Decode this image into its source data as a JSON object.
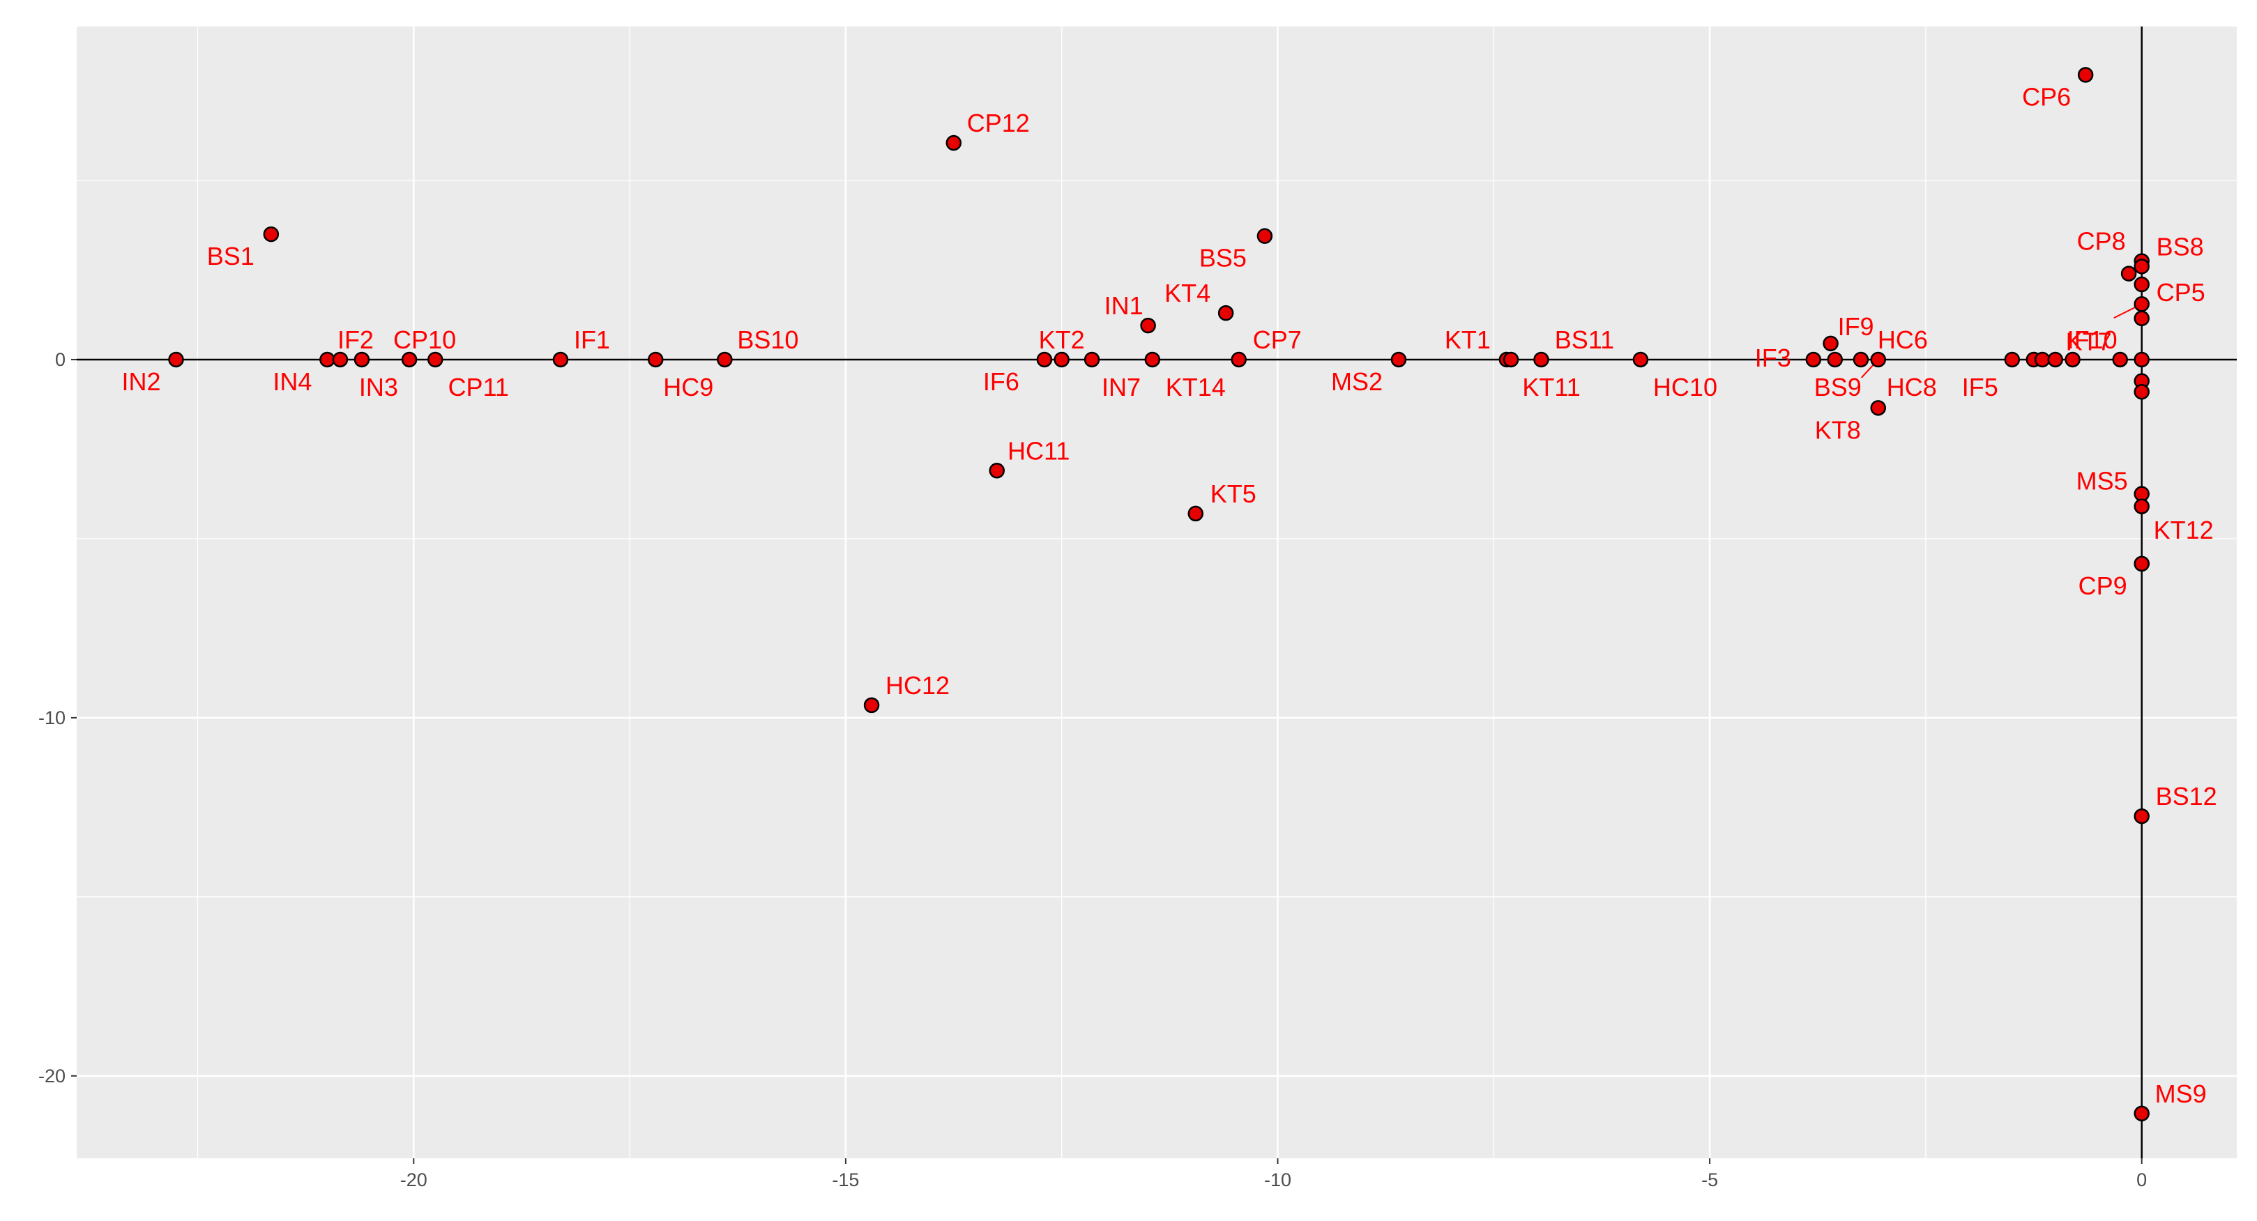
{
  "chart_data": {
    "type": "scatter",
    "title": "",
    "xlabel": "",
    "ylabel": "",
    "xlim": [
      -23.9,
      1.1
    ],
    "ylim": [
      -22.3,
      9.3
    ],
    "grid": true,
    "background": "#ebebeb",
    "point_color": "#e60000",
    "label_color": "#ff0000",
    "x_ticks": [
      -20,
      -15,
      -10,
      -5,
      0
    ],
    "y_ticks": [
      -20,
      -10,
      0
    ],
    "zero_lines": true,
    "points": [
      {
        "label": "IN2",
        "x": -22.75,
        "y": 0
      },
      {
        "label": "BS1",
        "x": -21.65,
        "y": 3.5
      },
      {
        "label": "IN4",
        "x": -21.0,
        "y": 0
      },
      {
        "label": "IF2",
        "x": -20.85,
        "y": 0
      },
      {
        "label": "IN3",
        "x": -20.6,
        "y": 0
      },
      {
        "label": "CP10",
        "x": -20.05,
        "y": 0
      },
      {
        "label": "CP11",
        "x": -19.75,
        "y": 0
      },
      {
        "label": "IF1",
        "x": -18.3,
        "y": 0
      },
      {
        "label": "HC9",
        "x": -17.2,
        "y": 0
      },
      {
        "label": "BS10",
        "x": -16.4,
        "y": 0
      },
      {
        "label": "HC12",
        "x": -14.7,
        "y": -9.65
      },
      {
        "label": "CP12",
        "x": -13.75,
        "y": 6.05
      },
      {
        "label": "HC11",
        "x": -13.25,
        "y": -3.1
      },
      {
        "label": "IF6",
        "x": -12.7,
        "y": 0
      },
      {
        "label": "KT2",
        "x": -12.5,
        "y": 0
      },
      {
        "label": "IN7",
        "x": -12.15,
        "y": 0
      },
      {
        "label": "IN1",
        "x": -11.5,
        "y": 0.95
      },
      {
        "label": "KT14",
        "x": -11.45,
        "y": 0
      },
      {
        "label": "KT5",
        "x": -10.95,
        "y": -4.3
      },
      {
        "label": "KT4",
        "x": -10.6,
        "y": 1.3
      },
      {
        "label": "CP7",
        "x": -10.45,
        "y": 0
      },
      {
        "label": "BS5",
        "x": -10.15,
        "y": 3.45
      },
      {
        "label": "MS2",
        "x": -8.6,
        "y": 0
      },
      {
        "label": "KT1",
        "x": -7.35,
        "y": 0
      },
      {
        "label": "KT11",
        "x": -7.3,
        "y": 0
      },
      {
        "label": "BS11",
        "x": -6.95,
        "y": 0
      },
      {
        "label": "HC10",
        "x": -5.8,
        "y": 0
      },
      {
        "label": "IF3",
        "x": -3.8,
        "y": 0
      },
      {
        "label": "IF9",
        "x": -3.6,
        "y": 0.45
      },
      {
        "label": "BS9",
        "x": -3.55,
        "y": 0
      },
      {
        "label": "HC6",
        "x": -3.25,
        "y": 0
      },
      {
        "label": "HC8",
        "x": -3.05,
        "y": 0
      },
      {
        "label": "KT8",
        "x": -3.05,
        "y": -1.35
      },
      {
        "label": "IF5",
        "x": -1.5,
        "y": 0
      },
      {
        "label": "",
        "x": -1.25,
        "y": 0
      },
      {
        "label": "",
        "x": -1.15,
        "y": 0
      },
      {
        "label": "",
        "x": -1.0,
        "y": 0
      },
      {
        "label": "",
        "x": -0.8,
        "y": 0
      },
      {
        "label": "CP6",
        "x": -0.65,
        "y": 7.95
      },
      {
        "label": "",
        "x": -0.15,
        "y": 2.4
      },
      {
        "label": "IF10",
        "x": -0.25,
        "y": 0
      },
      {
        "label": "CP8",
        "x": 0,
        "y": 2.75
      },
      {
        "label": "BS8",
        "x": 0,
        "y": 2.6
      },
      {
        "label": "CP5",
        "x": 0,
        "y": 2.1
      },
      {
        "label": "KT7",
        "x": 0,
        "y": 1.55
      },
      {
        "label": "",
        "x": 0,
        "y": 1.15
      },
      {
        "label": "",
        "x": 0,
        "y": 0
      },
      {
        "label": "",
        "x": 0,
        "y": -0.6
      },
      {
        "label": "",
        "x": 0,
        "y": -0.9
      },
      {
        "label": "MS5",
        "x": 0,
        "y": -3.75
      },
      {
        "label": "",
        "x": 0,
        "y": -4.1
      },
      {
        "label": "CP9",
        "x": 0,
        "y": -5.7
      },
      {
        "label": "KT12",
        "x": 0,
        "y": -5.7
      },
      {
        "label": "BS12",
        "x": 0,
        "y": -12.75
      },
      {
        "label": "MS9",
        "x": 0,
        "y": -21.05
      }
    ]
  }
}
